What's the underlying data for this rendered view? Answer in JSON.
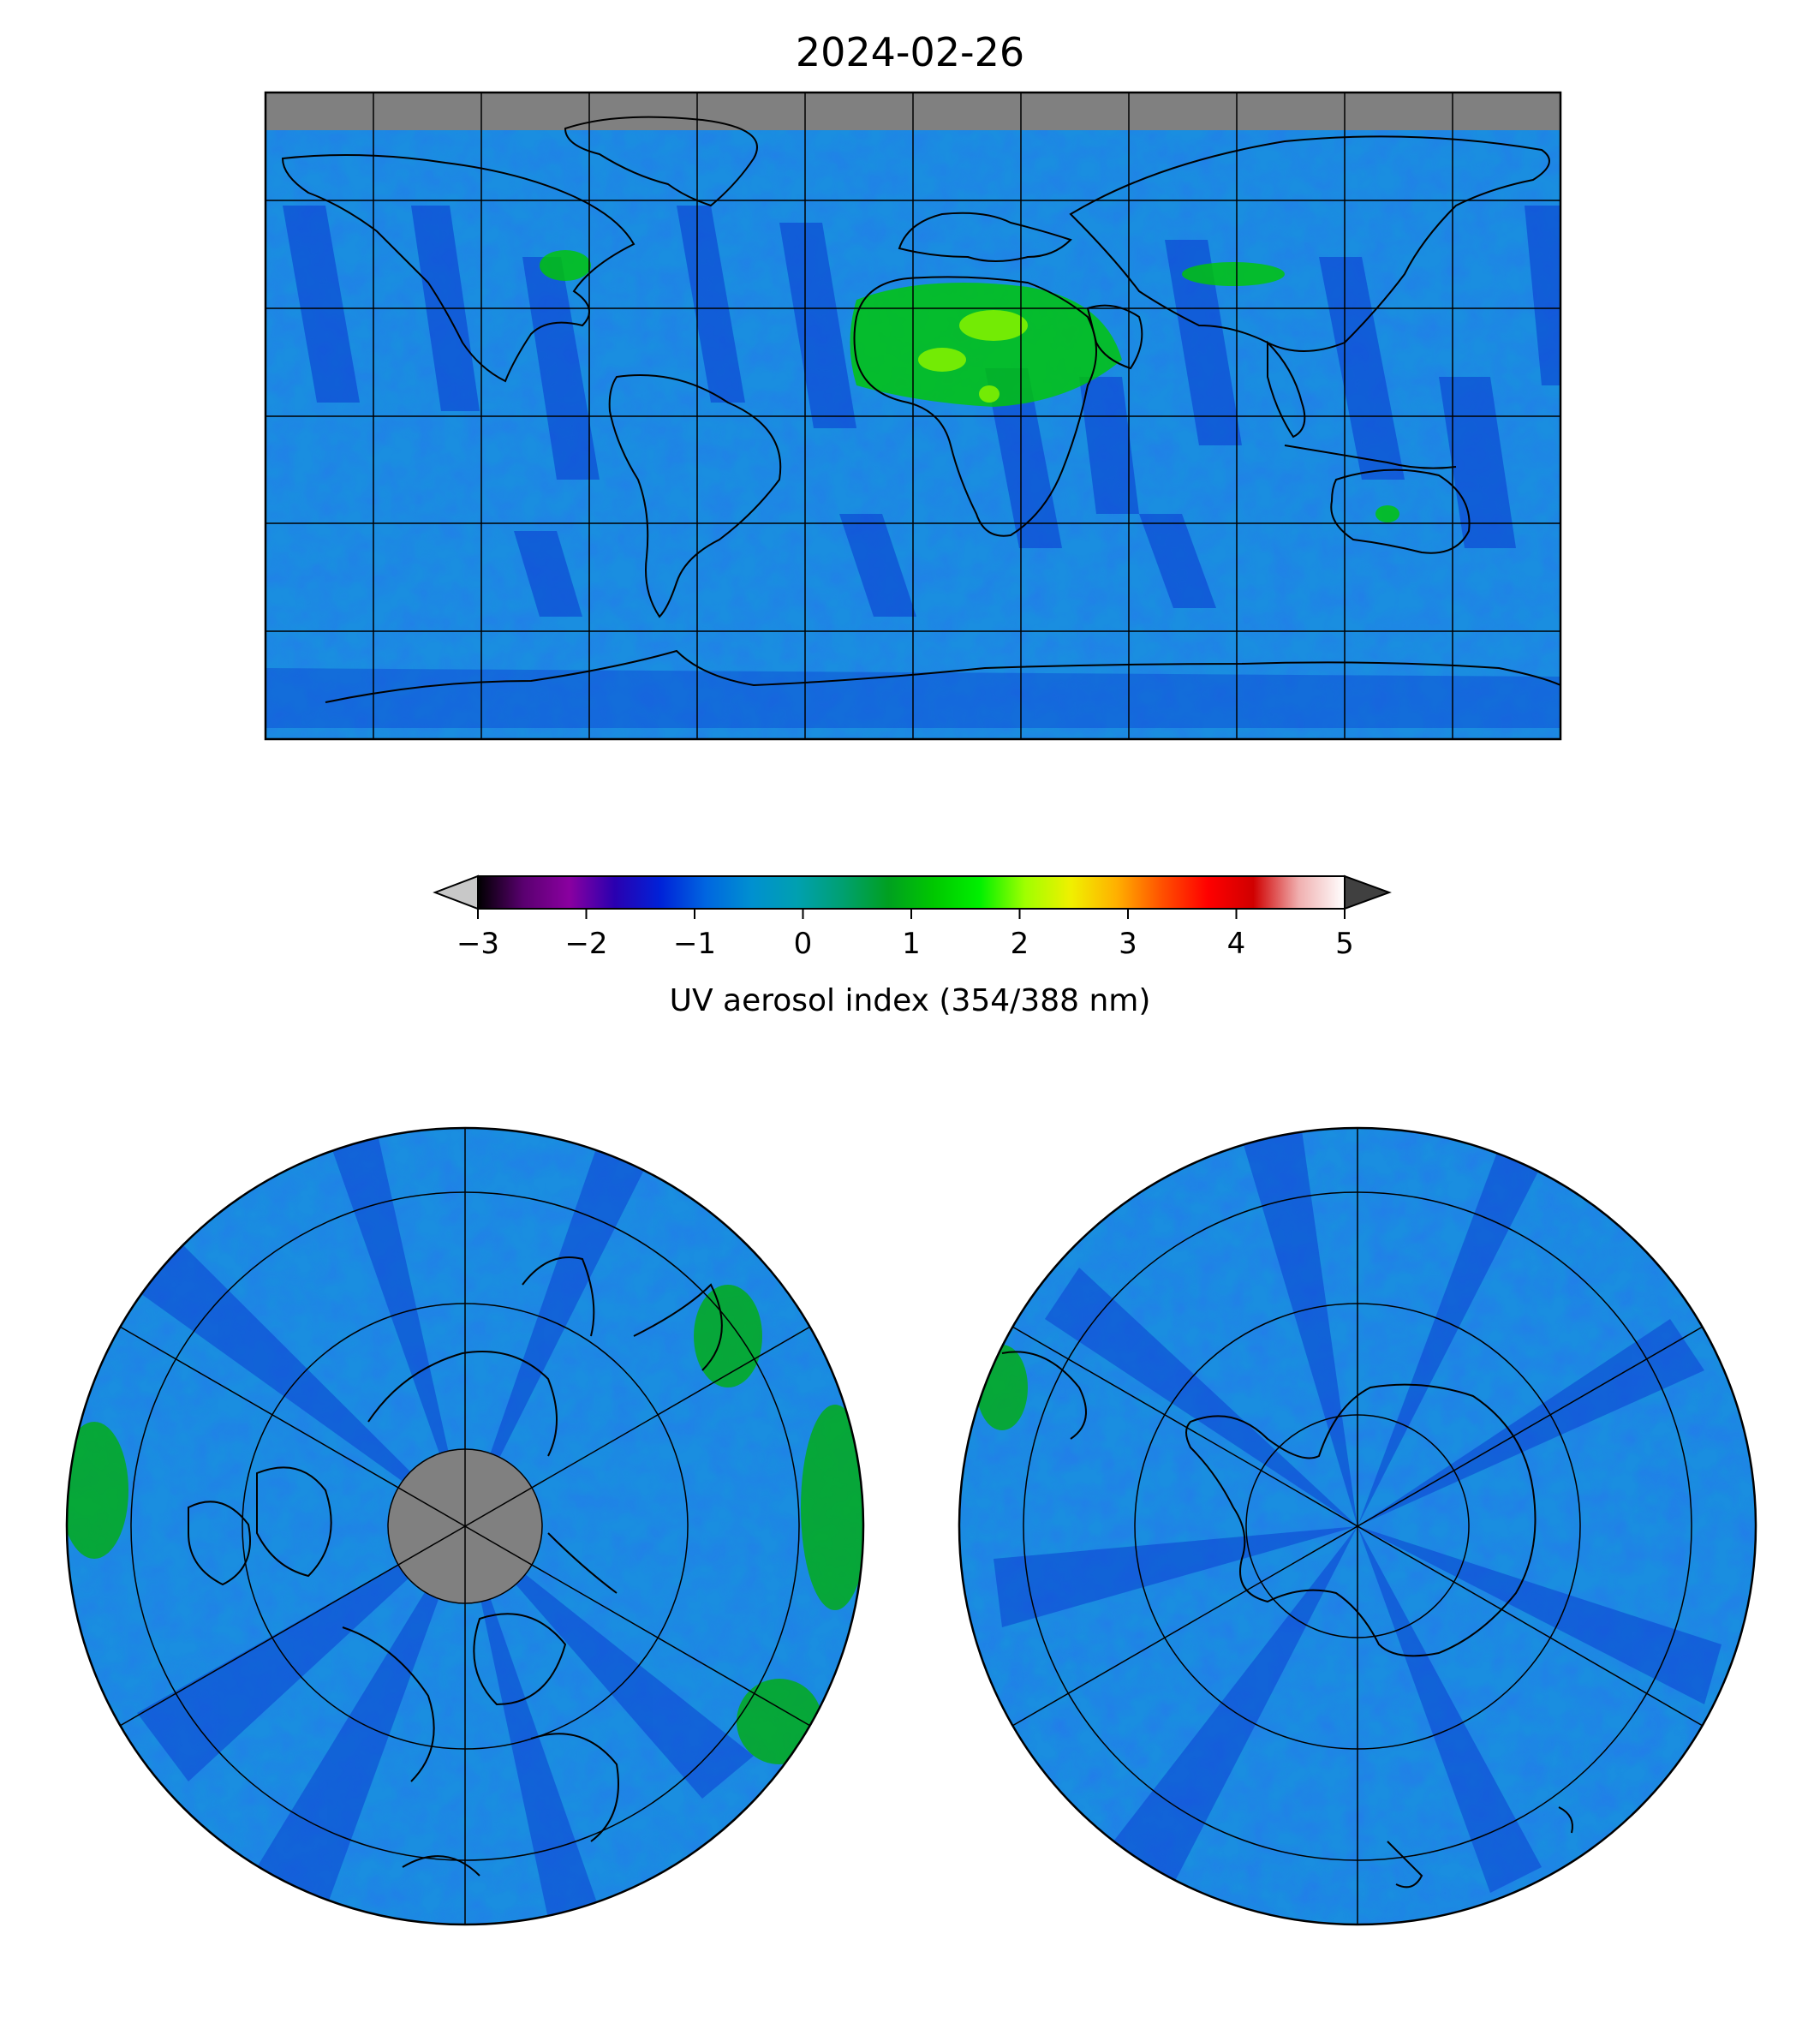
{
  "title": "2024-02-26",
  "colorbar": {
    "label": "UV aerosol index (354/388 nm)",
    "ticks": [
      "−3",
      "−2",
      "−1",
      "0",
      "1",
      "2",
      "3",
      "4",
      "5"
    ],
    "range": [
      -3,
      5
    ],
    "extend": "both",
    "under_color": "#c8c8c8",
    "over_color": "#404040",
    "colors": [
      "#000000",
      "#5a0070",
      "#8a00a0",
      "#2a00b0",
      "#0022d8",
      "#0066e0",
      "#0090d0",
      "#00a0b0",
      "#00a070",
      "#00a020",
      "#00c800",
      "#00f000",
      "#a0ff00",
      "#f0f000",
      "#ffb000",
      "#ff5000",
      "#ff0000",
      "#d00000",
      "#f0b0b0",
      "#ffffff"
    ]
  },
  "maps": {
    "global": {
      "projection": "equirectangular",
      "no_data_color": "#808080"
    },
    "north_polar": {
      "projection": "north-polar-stereographic",
      "no_data_color": "#808080"
    },
    "south_polar": {
      "projection": "south-polar-stereographic"
    }
  },
  "colors": {
    "background_field": "#1a8ee0",
    "field_dark": "#0a3ad0",
    "field_green": "#00b000",
    "no_data": "#808080"
  }
}
